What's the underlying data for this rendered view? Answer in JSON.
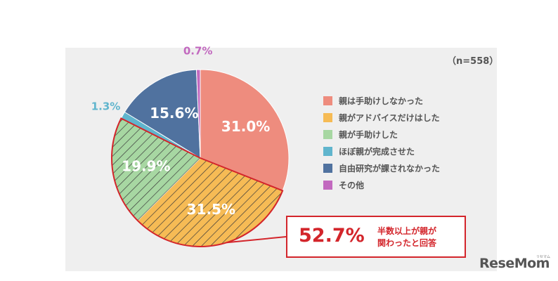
{
  "sample_label": "（n=558）",
  "chart_data": {
    "type": "pie",
    "categories": [
      "親は手助けしなかった",
      "親がアドバイスだけはした",
      "親が手助けした",
      "ほぼ親が完成させた",
      "自由研究が課されなかった",
      "その他"
    ],
    "values": [
      31.0,
      31.5,
      19.9,
      1.3,
      15.6,
      0.7
    ],
    "value_labels": [
      "31.0%",
      "31.5%",
      "19.9%",
      "1.3%",
      "15.6%",
      "0.7%"
    ],
    "colors": [
      "#ee8c7e",
      "#f6bb55",
      "#a7d7a2",
      "#60b5cd",
      "#50729f",
      "#c269bf"
    ],
    "hatched_categories": [
      "親がアドバイスだけはした",
      "親が手助けした"
    ],
    "legend_position": "right",
    "annotation": {
      "value": "52.7%",
      "text_line1": "半数以上が親が",
      "text_line2": "関わったと回答"
    }
  },
  "logo": {
    "text": "ReseMom",
    "kana": "リセマム"
  }
}
